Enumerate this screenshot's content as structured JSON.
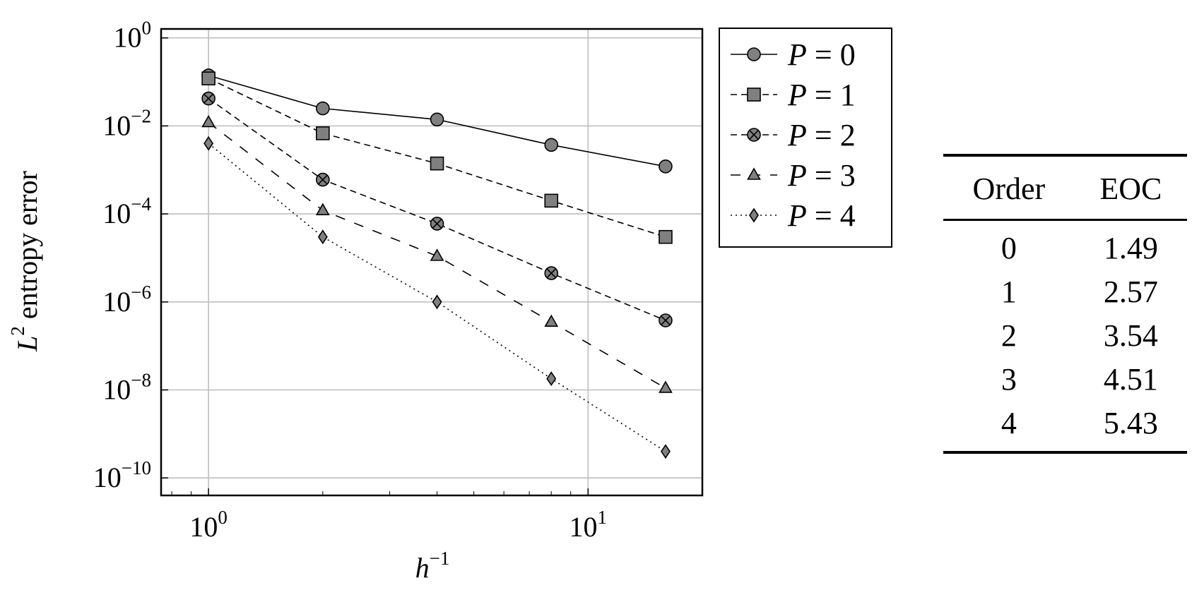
{
  "chart_data": {
    "type": "line",
    "xscale": "log",
    "yscale": "log",
    "xlabel_base": "h",
    "xlabel_exp": "−1",
    "ylabel_base": "L",
    "ylabel_exp": "2",
    "ylabel_rest": " entropy error",
    "xlim": [
      0.75,
      20
    ],
    "ylim": [
      4e-11,
      1.6
    ],
    "grid": true,
    "legend_position": "outside-right-top",
    "x_ticks": [
      {
        "value": 1,
        "base": "10",
        "exp": "0"
      },
      {
        "value": 10,
        "base": "10",
        "exp": "1"
      }
    ],
    "y_ticks": [
      {
        "value": 1,
        "base": "10",
        "exp": "0"
      },
      {
        "value": 0.01,
        "base": "10",
        "exp": "−2"
      },
      {
        "value": 0.0001,
        "base": "10",
        "exp": "−4"
      },
      {
        "value": 1e-06,
        "base": "10",
        "exp": "−6"
      },
      {
        "value": 1e-08,
        "base": "10",
        "exp": "−8"
      },
      {
        "value": 1e-10,
        "base": "10",
        "exp": "−10"
      }
    ],
    "x": [
      1,
      2,
      4,
      8,
      16
    ],
    "series": [
      {
        "name": "P = 0",
        "label_var": "P",
        "label_eq": " = 0",
        "marker": "circle",
        "line": "solid",
        "values": [
          0.14,
          0.025,
          0.014,
          0.0037,
          0.0012
        ]
      },
      {
        "name": "P = 1",
        "label_var": "P",
        "label_eq": " = 1",
        "marker": "square",
        "line": "dashed",
        "values": [
          0.12,
          0.0068,
          0.0014,
          0.0002,
          3e-05
        ]
      },
      {
        "name": "P = 2",
        "label_var": "P",
        "label_eq": " = 2",
        "marker": "circle-x",
        "line": "dashed",
        "values": [
          0.042,
          0.0006,
          6e-05,
          4.5e-06,
          3.8e-07
        ]
      },
      {
        "name": "P = 3",
        "label_var": "P",
        "label_eq": " = 3",
        "marker": "triangle",
        "line": "long-dashed",
        "values": [
          0.012,
          0.00012,
          1.1e-05,
          3.5e-07,
          1.1e-08
        ]
      },
      {
        "name": "P = 4",
        "label_var": "P",
        "label_eq": " = 4",
        "marker": "diamond",
        "line": "dotted",
        "values": [
          0.004,
          3e-05,
          1e-06,
          1.8e-08,
          4e-10
        ]
      }
    ],
    "colors": {
      "marker_fill": "#808080",
      "line": "#000000",
      "grid": "#bfbfbf"
    }
  },
  "table": {
    "headers": [
      "Order",
      "EOC"
    ],
    "rows": [
      [
        "0",
        "1.49"
      ],
      [
        "1",
        "2.57"
      ],
      [
        "2",
        "3.54"
      ],
      [
        "3",
        "4.51"
      ],
      [
        "4",
        "5.43"
      ]
    ]
  }
}
